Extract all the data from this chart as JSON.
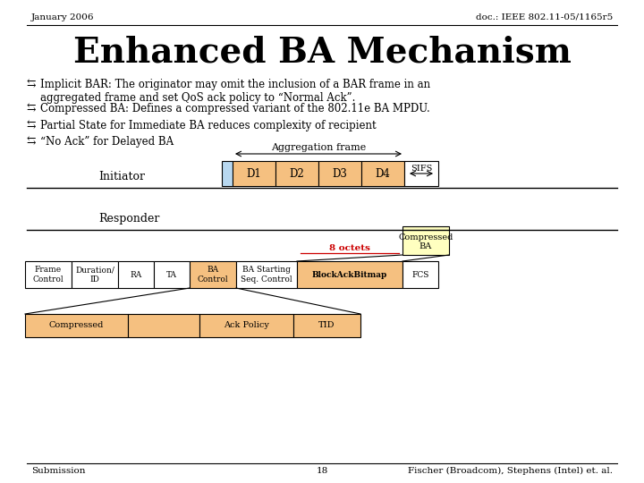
{
  "title": "Enhanced BA Mechanism",
  "header_left": "January 2006",
  "header_right": "doc.: IEEE 802.11-05/1165r5",
  "footer_left": "Submission",
  "footer_center": "18",
  "footer_right": "Fischer (Broadcom), Stephens (Intel) et. al.",
  "bullets": [
    "Implicit BAR: The originator may omit the inclusion of a BAR frame in an\naggregated frame and set QoS ack policy to “Normal Ack”.",
    "Compressed BA: Defines a compressed variant of the 802.11e BA MPDU.",
    "Partial State for Immediate BA reduces complexity of recipient",
    "“No Ack” for Delayed BA"
  ],
  "bg_color": "#ffffff",
  "orange_color": "#f5c080",
  "light_blue_color": "#b8d8f0",
  "light_yellow_color": "#ffffc0",
  "red_color": "#cc0000"
}
